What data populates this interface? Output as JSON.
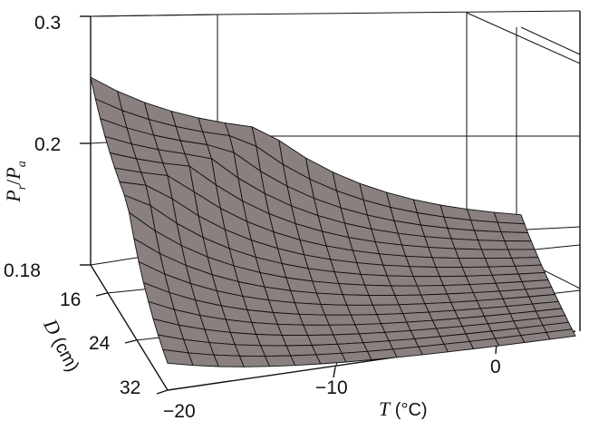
{
  "chart_data": {
    "type": "surface3d",
    "zlabel_parts": [
      "P",
      "r",
      "/",
      "P",
      "a"
    ],
    "xlabel_main": "T",
    "xlabel_unit": " (°C)",
    "ylabel_main": "D",
    "ylabel_unit": " (cm)",
    "x_ticks": [
      "−20",
      "−10",
      "0"
    ],
    "y_ticks": [
      "16",
      "24",
      "32"
    ],
    "z_ticks": [
      "0.3",
      "0.2",
      "0.18"
    ],
    "xlim": [
      -20,
      5
    ],
    "ylim": [
      16,
      32
    ],
    "zlim_ticks": [
      0.18,
      0.2,
      0.3
    ],
    "surface": {
      "x": [
        -20,
        5
      ],
      "y": [
        16,
        32
      ],
      "corner_values": {
        "x_min_y_min": 0.25,
        "x_max_y_min": 0.181,
        "x_min_y_max": 0.186,
        "x_max_y_max": 0.179
      },
      "grid_divisions": 16,
      "color": "#8a8080"
    },
    "grid": true
  }
}
